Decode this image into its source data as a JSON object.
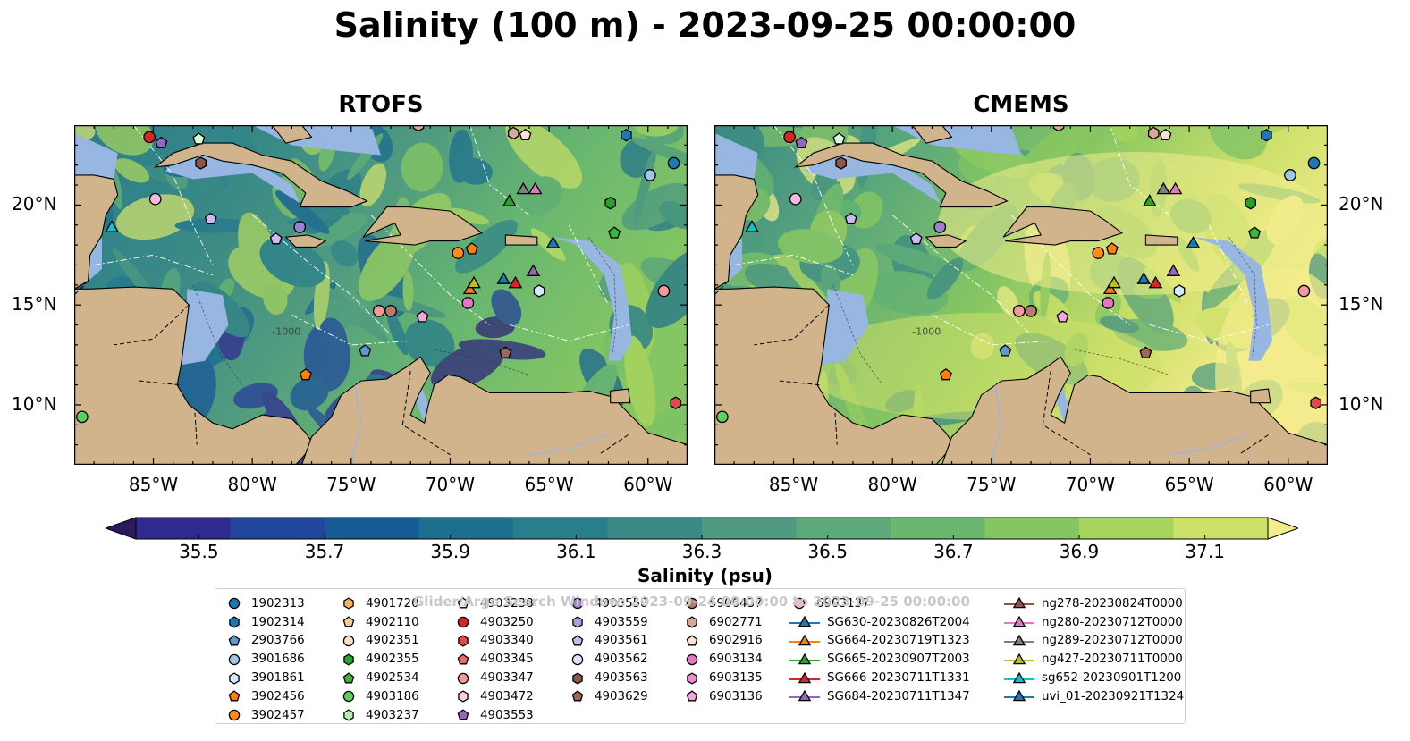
{
  "title": "Salinity (100 m) - 2023-09-25 00:00:00",
  "panels": [
    {
      "name": "RTOFS"
    },
    {
      "name": "CMEMS"
    }
  ],
  "map_extent": {
    "lon": [
      -89,
      -58
    ],
    "lat": [
      7,
      24
    ]
  },
  "lon_ticks": [
    "85°W",
    "80°W",
    "75°W",
    "70°W",
    "65°W",
    "60°W"
  ],
  "lat_ticks": [
    "20°N",
    "15°N",
    "10°N"
  ],
  "isobath_label": "-1000",
  "colorbar": {
    "label": "Salinity (psu)",
    "ticks": [
      "35.5",
      "35.7",
      "35.9",
      "36.1",
      "36.3",
      "36.5",
      "36.7",
      "36.9",
      "37.1"
    ],
    "range": [
      35.4,
      37.2
    ],
    "colors": [
      "#2b1a5e",
      "#302a90",
      "#22469c",
      "#175b96",
      "#1d6e8f",
      "#2a7d8a",
      "#3a8a86",
      "#4f9a80",
      "#5ca97a",
      "#6ab86f",
      "#86c662",
      "#a7d45d",
      "#cde06a",
      "#f3ec8c"
    ],
    "extend": "both"
  },
  "watermark": "Glider/Argo Search Window: 2023-09-24 00:00:00 to 2023-09-25 00:00:00",
  "colors": {
    "land": "#d2b48c",
    "shallow": "#97b6e1",
    "marker_edge": "#000000"
  },
  "legend": [
    [
      {
        "label": "1902313",
        "shape": "circle",
        "color": "#1f77b4"
      },
      {
        "label": "1902314",
        "shape": "hexagon",
        "color": "#1f77b4"
      },
      {
        "label": "2903766",
        "shape": "pentagon",
        "color": "#5d9ad0"
      },
      {
        "label": "3901686",
        "shape": "circle",
        "color": "#9ec6e8"
      },
      {
        "label": "3901861",
        "shape": "hexagon",
        "color": "#d4e9fa"
      },
      {
        "label": "3902456",
        "shape": "pentagon",
        "color": "#ff7f0e"
      },
      {
        "label": "3902457",
        "shape": "circle",
        "color": "#ff8c1a"
      }
    ],
    [
      {
        "label": "4901720",
        "shape": "hexagon",
        "color": "#ffad66"
      },
      {
        "label": "4902110",
        "shape": "pentagon",
        "color": "#ffc999"
      },
      {
        "label": "4902351",
        "shape": "circle",
        "color": "#ffe0c2"
      },
      {
        "label": "4902355",
        "shape": "hexagon",
        "color": "#2ca02c"
      },
      {
        "label": "4902534",
        "shape": "pentagon",
        "color": "#3cb53c"
      },
      {
        "label": "4903186",
        "shape": "circle",
        "color": "#5ccf5c"
      },
      {
        "label": "4903237",
        "shape": "hexagon",
        "color": "#b2f0b2"
      }
    ],
    [
      {
        "label": "4903238",
        "shape": "pentagon",
        "color": "#d9fad9"
      },
      {
        "label": "4903250",
        "shape": "circle",
        "color": "#d62728"
      },
      {
        "label": "4903340",
        "shape": "hexagon",
        "color": "#e04a4a"
      },
      {
        "label": "4903345",
        "shape": "pentagon",
        "color": "#e86c6c"
      },
      {
        "label": "4903347",
        "shape": "circle",
        "color": "#f29a9a"
      },
      {
        "label": "4903472",
        "shape": "hexagon",
        "color": "#fbd1d1"
      },
      {
        "label": "4903553",
        "shape": "pentagon",
        "color": "#9467bd"
      }
    ],
    [
      {
        "label": "4903558",
        "shape": "circle",
        "color": "#a17fd0"
      },
      {
        "label": "4903559",
        "shape": "hexagon",
        "color": "#b69ae0"
      },
      {
        "label": "4903561",
        "shape": "pentagon",
        "color": "#cdb9ee"
      },
      {
        "label": "4903562",
        "shape": "circle",
        "color": "#e8dcfa"
      },
      {
        "label": "4903563",
        "shape": "hexagon",
        "color": "#8c564b"
      },
      {
        "label": "4903629",
        "shape": "pentagon",
        "color": "#a0665a"
      }
    ],
    [
      {
        "label": "5906437",
        "shape": "circle",
        "color": "#b57b6d"
      },
      {
        "label": "6902771",
        "shape": "hexagon",
        "color": "#d9a796"
      },
      {
        "label": "6902916",
        "shape": "pentagon",
        "color": "#fde0d6"
      },
      {
        "label": "6903134",
        "shape": "circle",
        "color": "#e377c2"
      },
      {
        "label": "6903135",
        "shape": "hexagon",
        "color": "#ec8fd0"
      },
      {
        "label": "6903136",
        "shape": "pentagon",
        "color": "#f3a7dd"
      }
    ],
    [
      {
        "label": "6903137",
        "shape": "circle",
        "color": "#f7b6e5"
      },
      {
        "label": "SG630-20230826T2004",
        "shape": "triangle",
        "color": "#1f77b4",
        "line": true
      },
      {
        "label": "SG664-20230719T1323",
        "shape": "triangle",
        "color": "#ff7f0e",
        "line": true
      },
      {
        "label": "SG665-20230907T2003",
        "shape": "triangle",
        "color": "#2ca02c",
        "line": true
      },
      {
        "label": "SG666-20230711T1331",
        "shape": "triangle",
        "color": "#d62728",
        "line": true
      },
      {
        "label": "SG684-20230711T1347",
        "shape": "triangle",
        "color": "#9467bd",
        "line": true
      }
    ],
    [
      {
        "label": "ng278-20230824T0000",
        "shape": "triangle",
        "color": "#8c564b",
        "line": true
      },
      {
        "label": "ng280-20230712T0000",
        "shape": "triangle",
        "color": "#e377c2",
        "line": true
      },
      {
        "label": "ng289-20230712T0000",
        "shape": "triangle",
        "color": "#7f7f7f",
        "line": true
      },
      {
        "label": "ng427-20230711T0000",
        "shape": "triangle",
        "color": "#bcbd22",
        "line": true
      },
      {
        "label": "sg652-20230901T1200",
        "shape": "triangle",
        "color": "#17becf",
        "line": true
      },
      {
        "label": "uvi_01-20230921T1324",
        "shape": "triangle",
        "color": "#1f77b4",
        "line": true
      }
    ]
  ],
  "markers": [
    {
      "label": "4903250",
      "lon": -85.2,
      "lat": 23.4
    },
    {
      "label": "4903553",
      "lon": -84.6,
      "lat": 23.1
    },
    {
      "label": "4903238",
      "lon": -82.7,
      "lat": 23.3
    },
    {
      "label": "4903563",
      "lon": -82.6,
      "lat": 22.1
    },
    {
      "label": "6903137",
      "lon": -84.9,
      "lat": 20.3
    },
    {
      "label": "4903561",
      "lon": -82.1,
      "lat": 19.3
    },
    {
      "label": "4903558",
      "lon": -77.6,
      "lat": 18.9
    },
    {
      "label": "4903561",
      "lon": -78.8,
      "lat": 18.3
    },
    {
      "label": "sg652-20230901T1200",
      "lon": -87.1,
      "lat": 18.9
    },
    {
      "label": "6902771",
      "lon": -71.6,
      "lat": 24.0
    },
    {
      "label": "6902771",
      "lon": -66.8,
      "lat": 23.6
    },
    {
      "label": "6902916",
      "lon": -66.2,
      "lat": 23.5
    },
    {
      "label": "1902314",
      "lon": -61.1,
      "lat": 23.5
    },
    {
      "label": "3901686",
      "lon": -59.9,
      "lat": 21.5
    },
    {
      "label": "1902313",
      "lon": -58.7,
      "lat": 22.1
    },
    {
      "label": "SG665-20230907T2003",
      "lon": -67.0,
      "lat": 20.2
    },
    {
      "label": "ng289-20230712T0000",
      "lon": -66.3,
      "lat": 20.8
    },
    {
      "label": "ng280-20230712T0000",
      "lon": -65.7,
      "lat": 20.8
    },
    {
      "label": "4902355",
      "lon": -61.9,
      "lat": 20.1
    },
    {
      "label": "4902534",
      "lon": -61.7,
      "lat": 18.6
    },
    {
      "label": "3902457",
      "lon": -69.6,
      "lat": 17.6
    },
    {
      "label": "3902456",
      "lon": -68.9,
      "lat": 17.8
    },
    {
      "label": "uvi_01-20230921T1324",
      "lon": -64.8,
      "lat": 18.1
    },
    {
      "label": "SG630-20230826T2004",
      "lon": -67.3,
      "lat": 16.3
    },
    {
      "label": "SG666-20230711T1331",
      "lon": -66.7,
      "lat": 16.1
    },
    {
      "label": "SG684-20230711T1347",
      "lon": -65.8,
      "lat": 16.7
    },
    {
      "label": "3901861",
      "lon": -65.5,
      "lat": 15.7
    },
    {
      "label": "SG664-20230719T1323",
      "lon": -69.0,
      "lat": 15.8
    },
    {
      "label": "ng427-20230711T0000",
      "lon": -68.8,
      "lat": 16.1
    },
    {
      "label": "6903134",
      "lon": -69.1,
      "lat": 15.1
    },
    {
      "label": "4903347",
      "lon": -73.6,
      "lat": 14.7
    },
    {
      "label": "5906437",
      "lon": -73.0,
      "lat": 14.7
    },
    {
      "label": "6903136",
      "lon": -71.4,
      "lat": 14.4
    },
    {
      "label": "4903347",
      "lon": -59.2,
      "lat": 15.7
    },
    {
      "label": "2903766",
      "lon": -74.3,
      "lat": 12.7
    },
    {
      "label": "4903629",
      "lon": -67.2,
      "lat": 12.6
    },
    {
      "label": "3902456",
      "lon": -77.3,
      "lat": 11.5
    },
    {
      "label": "4903340",
      "lon": -58.6,
      "lat": 10.1
    },
    {
      "label": "4903186",
      "lon": -88.6,
      "lat": 9.4
    }
  ]
}
